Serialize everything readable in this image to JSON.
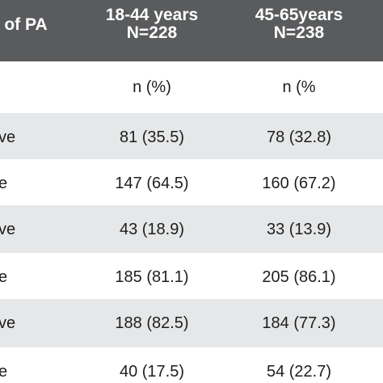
{
  "colors": {
    "header_bg": "#595b5d",
    "shaded_row": "#e6e7e8",
    "white_row": "#ffffff",
    "text": "#1e1e1e"
  },
  "table": {
    "headers": [
      {
        "lines": [
          "el of PA"
        ]
      },
      {
        "lines": [
          "18-44 years",
          "N=228"
        ]
      },
      {
        "lines": [
          "45-65years",
          "N=238"
        ]
      }
    ],
    "rows": [
      {
        "cells": [
          "",
          "n (%)",
          "n (%"
        ]
      },
      {
        "cells": [
          "ve",
          "81 (35.5)",
          "78 (32.8)"
        ]
      },
      {
        "cells": [
          "e",
          "147 (64.5)",
          "160 (67.2)"
        ]
      },
      {
        "cells": [
          "ve",
          "43 (18.9)",
          "33 (13.9)"
        ]
      },
      {
        "cells": [
          "e",
          "185 (81.1)",
          "205 (86.1)"
        ]
      },
      {
        "cells": [
          "ve",
          "188 (82.5)",
          "184 (77.3)"
        ]
      },
      {
        "cells": [
          "e",
          "40 (17.5)",
          "54 (22.7)"
        ]
      }
    ]
  }
}
